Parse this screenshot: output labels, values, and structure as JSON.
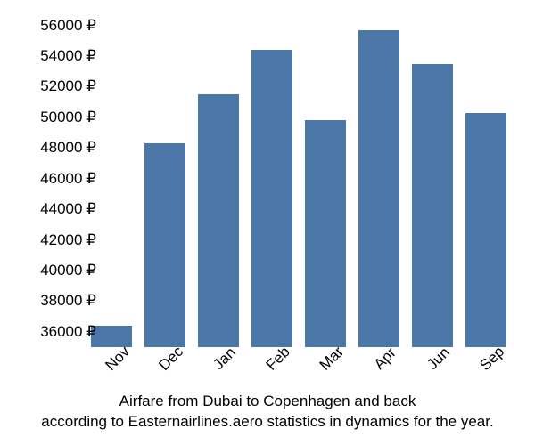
{
  "chart": {
    "type": "bar",
    "categories": [
      "Nov",
      "Dec",
      "Jan",
      "Feb",
      "Mar",
      "Apr",
      "Jun",
      "Sep"
    ],
    "values": [
      36400,
      48300,
      51500,
      54400,
      49800,
      55700,
      53500,
      50300
    ],
    "bar_color": "#4a77a8",
    "background_color": "#ffffff",
    "y_axis": {
      "min": 35000,
      "max": 56500,
      "ticks": [
        36000,
        38000,
        40000,
        42000,
        44000,
        46000,
        48000,
        50000,
        52000,
        54000,
        56000
      ],
      "tick_suffix": " ₽",
      "label_fontsize": 17,
      "label_color": "#000000"
    },
    "x_axis": {
      "label_fontsize": 17,
      "label_color": "#000000",
      "rotation_deg": -45
    },
    "caption_line1": "Airfare from Dubai to Copenhagen and back",
    "caption_line2": "according to Easternairlines.aero statistics in dynamics for the year.",
    "caption_fontsize": 17,
    "caption_color": "#000000"
  }
}
